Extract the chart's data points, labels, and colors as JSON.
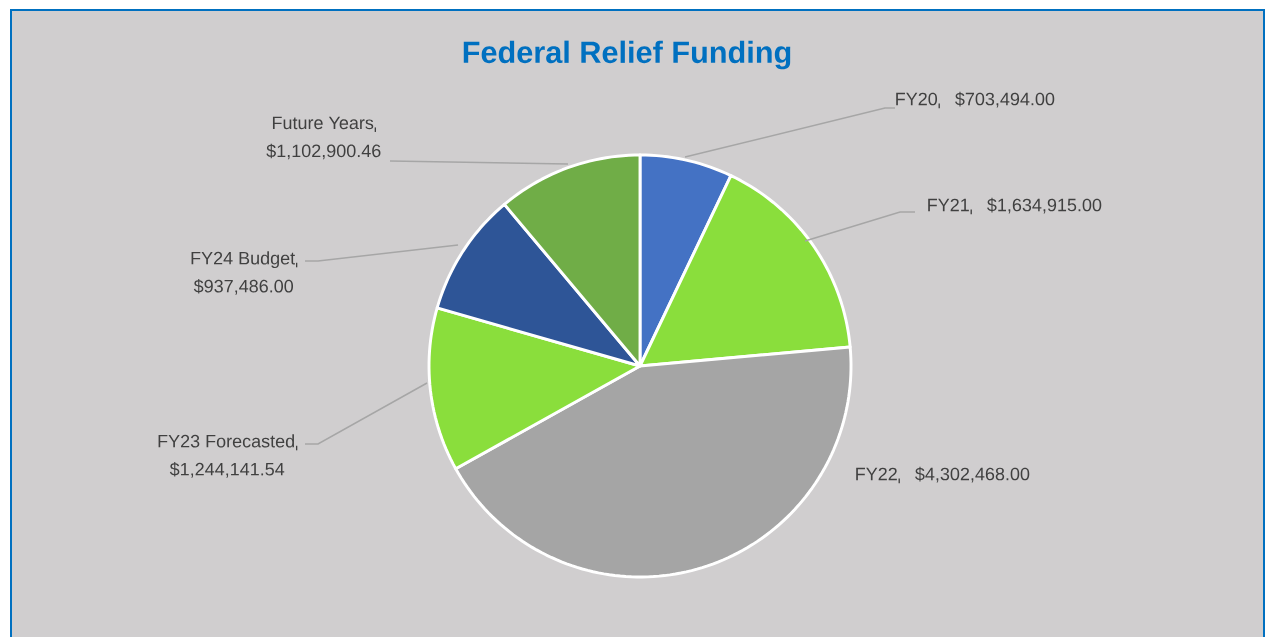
{
  "chart_data": {
    "type": "pie",
    "title": "Federal Relief Funding",
    "categories": [
      "FY20",
      "FY21",
      "FY22",
      "FY23 Forecasted",
      "FY24 Budget",
      "Future Years"
    ],
    "values": [
      703494.0,
      1634915.0,
      4302468.0,
      1244141.54,
      937486.0,
      1102900.46
    ],
    "value_labels": [
      "$703,494.00",
      "$1,634,915.00",
      "$4,302,468.00",
      "$1,244,141.54",
      "$937,486.00",
      "$1,102,900.46"
    ],
    "colors": [
      "#4472c4",
      "#8ade3c",
      "#a5a5a5",
      "#8ade3c",
      "#2e5597",
      "#70ad47"
    ]
  }
}
